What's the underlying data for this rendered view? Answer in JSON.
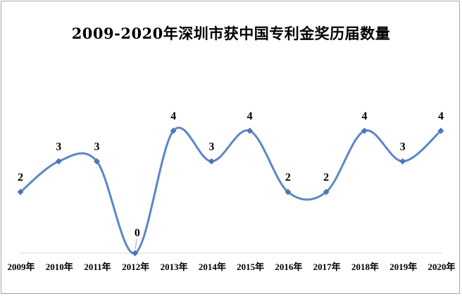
{
  "chart_data": {
    "type": "line",
    "title": "2009-2020年深圳市获中国专利金奖历届数量",
    "categories": [
      "2009年",
      "2010年",
      "2011年",
      "2012年",
      "2013年",
      "2014年",
      "2015年",
      "2016年",
      "2017年",
      "2018年",
      "2019年",
      "2020年"
    ],
    "series": [
      {
        "values": [
          2,
          3,
          3,
          0,
          4,
          3,
          4,
          2,
          2,
          4,
          3,
          4
        ]
      }
    ],
    "ylim": [
      0,
      4
    ],
    "grid": false,
    "smooth": true,
    "data_labels": true,
    "colors": {
      "line": "#5b87c5",
      "marker": "#4a77b8",
      "axis": "#d9d9d9"
    }
  }
}
